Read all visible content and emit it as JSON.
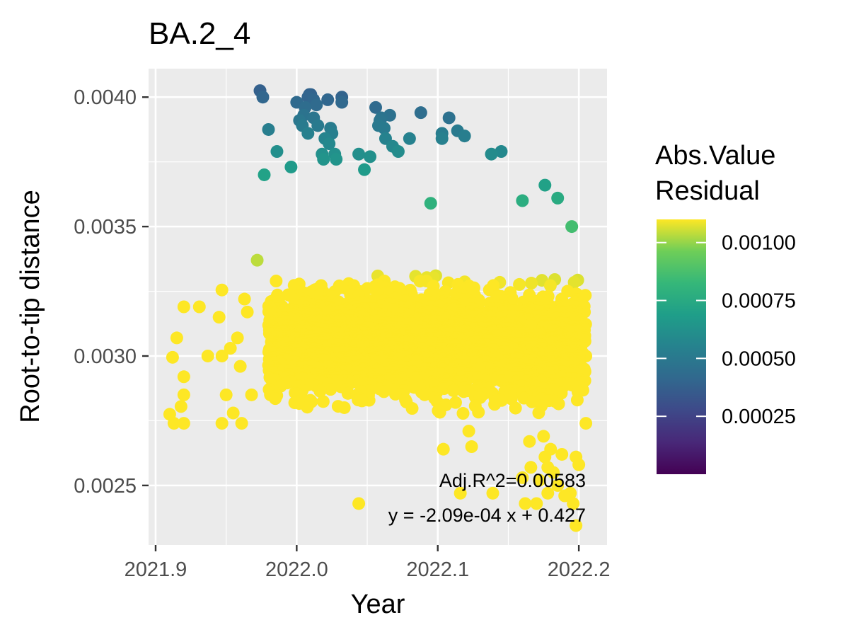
{
  "chart_data": {
    "type": "scatter",
    "title": "BA.2_4",
    "xlabel": "Year",
    "ylabel": "Root-to-tip distance",
    "xlim": [
      2021.895,
      2022.22
    ],
    "ylim": [
      0.00227,
      0.00411
    ],
    "x_ticks": [
      2021.9,
      2022.0,
      2022.1,
      2022.2
    ],
    "x_tick_labels": [
      "2021.9",
      "2022.0",
      "2022.1",
      "2022.2"
    ],
    "y_ticks": [
      0.0025,
      0.003,
      0.0035,
      0.004
    ],
    "y_tick_labels": [
      "0.0025",
      "0.0030",
      "0.0035",
      "0.0040"
    ],
    "grid": true,
    "regression": {
      "slope": -0.000209,
      "intercept": 0.427,
      "x_range": [
        2021.895,
        2022.22
      ],
      "equation_label": "y = -2.09e-04 x + 0.427",
      "r2_label": "Adj.R^2=0.00583"
    },
    "color_legend": {
      "title_line1": "Abs.Value",
      "title_line2": "Residual",
      "scale": "viridis",
      "range": [
        0,
        0.0011
      ],
      "ticks": [
        0.00025,
        0.0005,
        0.00075,
        0.001
      ],
      "tick_labels": [
        "0.00025",
        "0.00050",
        "0.00075",
        "0.00100"
      ],
      "placement": "right"
    },
    "dense_band": {
      "x_range": [
        2021.98,
        2022.205
      ],
      "y_range": [
        0.00274,
        0.00335
      ],
      "count": 2600
    },
    "points": [
      {
        "x": 2021.91,
        "y": 0.002775
      },
      {
        "x": 2021.912,
        "y": 0.002995
      },
      {
        "x": 2021.913,
        "y": 0.00274
      },
      {
        "x": 2021.915,
        "y": 0.00307
      },
      {
        "x": 2021.918,
        "y": 0.002805
      },
      {
        "x": 2021.92,
        "y": 0.00319
      },
      {
        "x": 2021.92,
        "y": 0.00292
      },
      {
        "x": 2021.92,
        "y": 0.00285
      },
      {
        "x": 2021.92,
        "y": 0.00274
      },
      {
        "x": 2021.931,
        "y": 0.00319
      },
      {
        "x": 2021.937,
        "y": 0.003
      },
      {
        "x": 2021.945,
        "y": 0.00315
      },
      {
        "x": 2021.947,
        "y": 0.003255
      },
      {
        "x": 2021.947,
        "y": 0.003
      },
      {
        "x": 2021.947,
        "y": 0.00274
      },
      {
        "x": 2021.95,
        "y": 0.00285
      },
      {
        "x": 2021.953,
        "y": 0.00303
      },
      {
        "x": 2021.955,
        "y": 0.00278
      },
      {
        "x": 2021.958,
        "y": 0.00307
      },
      {
        "x": 2021.96,
        "y": 0.00296
      },
      {
        "x": 2021.961,
        "y": 0.00274
      },
      {
        "x": 2021.963,
        "y": 0.00322
      },
      {
        "x": 2021.965,
        "y": 0.00317
      },
      {
        "x": 2021.968,
        "y": 0.00285
      },
      {
        "x": 2021.972,
        "y": 0.00337
      },
      {
        "x": 2021.974,
        "y": 0.004025
      },
      {
        "x": 2021.976,
        "y": 0.004
      },
      {
        "x": 2021.977,
        "y": 0.0037
      },
      {
        "x": 2021.98,
        "y": 0.003875
      },
      {
        "x": 2021.986,
        "y": 0.00379
      },
      {
        "x": 2021.996,
        "y": 0.00373
      },
      {
        "x": 2022.0,
        "y": 0.00398
      },
      {
        "x": 2022.002,
        "y": 0.00391
      },
      {
        "x": 2022.004,
        "y": 0.00389
      },
      {
        "x": 2022.005,
        "y": 0.00393
      },
      {
        "x": 2022.006,
        "y": 0.00396
      },
      {
        "x": 2022.008,
        "y": 0.004
      },
      {
        "x": 2022.008,
        "y": 0.00386
      },
      {
        "x": 2022.009,
        "y": 0.00401
      },
      {
        "x": 2022.01,
        "y": 0.00401
      },
      {
        "x": 2022.012,
        "y": 0.00399
      },
      {
        "x": 2022.012,
        "y": 0.00392
      },
      {
        "x": 2022.014,
        "y": 0.00397
      },
      {
        "x": 2022.015,
        "y": 0.00389
      },
      {
        "x": 2022.018,
        "y": 0.00378
      },
      {
        "x": 2022.019,
        "y": 0.00376
      },
      {
        "x": 2022.02,
        "y": 0.00384
      },
      {
        "x": 2022.022,
        "y": 0.00399
      },
      {
        "x": 2022.023,
        "y": 0.00382
      },
      {
        "x": 2022.024,
        "y": 0.00388
      },
      {
        "x": 2022.025,
        "y": 0.00386
      },
      {
        "x": 2022.027,
        "y": 0.00378
      },
      {
        "x": 2022.028,
        "y": 0.00376
      },
      {
        "x": 2022.032,
        "y": 0.004
      },
      {
        "x": 2022.032,
        "y": 0.00398
      },
      {
        "x": 2022.044,
        "y": 0.00378
      },
      {
        "x": 2022.048,
        "y": 0.00372
      },
      {
        "x": 2022.052,
        "y": 0.00377
      },
      {
        "x": 2022.056,
        "y": 0.00396
      },
      {
        "x": 2022.058,
        "y": 0.00389
      },
      {
        "x": 2022.059,
        "y": 0.00391
      },
      {
        "x": 2022.06,
        "y": 0.00392
      },
      {
        "x": 2022.062,
        "y": 0.00388
      },
      {
        "x": 2022.063,
        "y": 0.00384
      },
      {
        "x": 2022.066,
        "y": 0.00393
      },
      {
        "x": 2022.068,
        "y": 0.00381
      },
      {
        "x": 2022.072,
        "y": 0.00379
      },
      {
        "x": 2022.08,
        "y": 0.00384
      },
      {
        "x": 2022.088,
        "y": 0.00394
      },
      {
        "x": 2022.095,
        "y": 0.00359
      },
      {
        "x": 2022.103,
        "y": 0.00384
      },
      {
        "x": 2022.103,
        "y": 0.00386
      },
      {
        "x": 2022.108,
        "y": 0.00392
      },
      {
        "x": 2022.114,
        "y": 0.00387
      },
      {
        "x": 2022.119,
        "y": 0.00385
      },
      {
        "x": 2022.138,
        "y": 0.00378
      },
      {
        "x": 2022.145,
        "y": 0.00379
      },
      {
        "x": 2022.16,
        "y": 0.0036
      },
      {
        "x": 2022.176,
        "y": 0.00366
      },
      {
        "x": 2022.185,
        "y": 0.00361
      },
      {
        "x": 2022.195,
        "y": 0.0035
      },
      {
        "x": 2022.104,
        "y": 0.00264
      },
      {
        "x": 2022.124,
        "y": 0.00265
      },
      {
        "x": 2022.122,
        "y": 0.00271
      },
      {
        "x": 2022.116,
        "y": 0.00247
      },
      {
        "x": 2022.139,
        "y": 0.00247
      },
      {
        "x": 2022.044,
        "y": 0.00243
      },
      {
        "x": 2022.165,
        "y": 0.00267
      },
      {
        "x": 2022.16,
        "y": 0.00253
      },
      {
        "x": 2022.162,
        "y": 0.00243
      },
      {
        "x": 2022.166,
        "y": 0.00257
      },
      {
        "x": 2022.17,
        "y": 0.00243
      },
      {
        "x": 2022.172,
        "y": 0.00252
      },
      {
        "x": 2022.175,
        "y": 0.00269
      },
      {
        "x": 2022.176,
        "y": 0.00261
      },
      {
        "x": 2022.178,
        "y": 0.00257
      },
      {
        "x": 2022.178,
        "y": 0.00247
      },
      {
        "x": 2022.18,
        "y": 0.00264
      },
      {
        "x": 2022.182,
        "y": 0.00255
      },
      {
        "x": 2022.185,
        "y": 0.0025
      },
      {
        "x": 2022.188,
        "y": 0.00262
      },
      {
        "x": 2022.19,
        "y": 0.00246
      },
      {
        "x": 2022.194,
        "y": 0.00247
      },
      {
        "x": 2022.196,
        "y": 0.00243
      },
      {
        "x": 2022.198,
        "y": 0.00261
      },
      {
        "x": 2022.198,
        "y": 0.002345
      },
      {
        "x": 2022.2,
        "y": 0.00258
      },
      {
        "x": 2022.204,
        "y": 0.00317
      },
      {
        "x": 2022.204,
        "y": 0.0031
      },
      {
        "x": 2022.205,
        "y": 0.003
      },
      {
        "x": 2022.205,
        "y": 0.00274
      }
    ]
  }
}
